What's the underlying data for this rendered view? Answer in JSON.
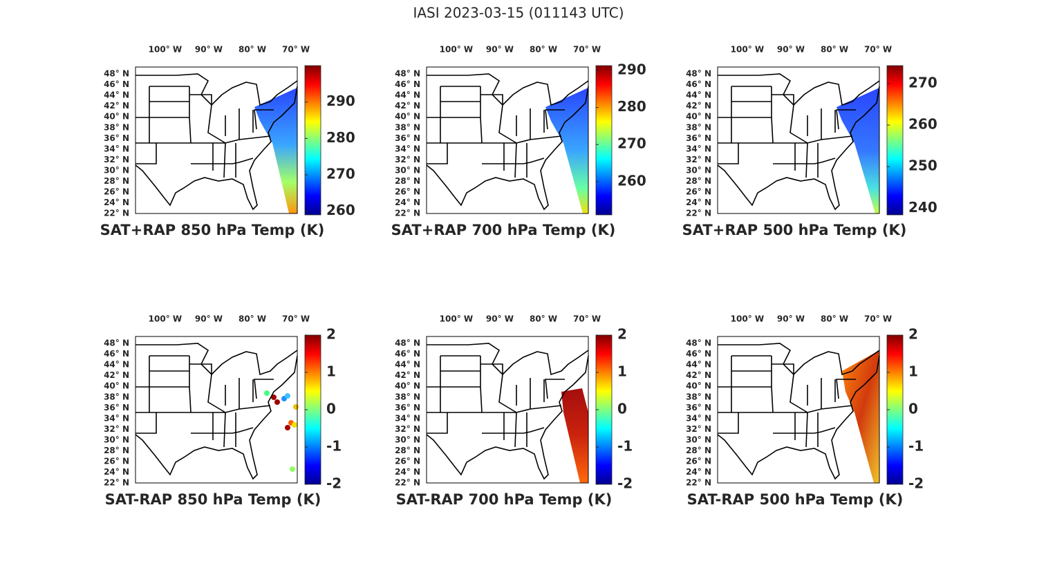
{
  "title": "IASI 2023-03-15 (011143 UTC)",
  "map": {
    "lon_lim": [
      -106.8,
      -69.7
    ],
    "lat_lim": [
      22,
      49.3
    ],
    "lon_ticks": [
      {
        "value": -100,
        "label": "100° W"
      },
      {
        "value": -90,
        "label": "90° W"
      },
      {
        "value": -80,
        "label": "80° W"
      },
      {
        "value": -70,
        "label": "70° W"
      }
    ],
    "lat_ticks": [
      {
        "value": 48,
        "label": "48° N"
      },
      {
        "value": 46,
        "label": "46° N"
      },
      {
        "value": 44,
        "label": "44° N"
      },
      {
        "value": 42,
        "label": "42° N"
      },
      {
        "value": 40,
        "label": "40° N"
      },
      {
        "value": 38,
        "label": "38° N"
      },
      {
        "value": 36,
        "label": "36° N"
      },
      {
        "value": 34,
        "label": "34° N"
      },
      {
        "value": 32,
        "label": "32° N"
      },
      {
        "value": 30,
        "label": "30° N"
      },
      {
        "value": 28,
        "label": "28° N"
      },
      {
        "value": 26,
        "label": "26° N"
      },
      {
        "value": 24,
        "label": "24° N"
      },
      {
        "value": 22,
        "label": "22° N"
      }
    ]
  },
  "panels": [
    {
      "title": "SAT+RAP 850 hPa Temp (K)",
      "cbar_lim": [
        259,
        300
      ],
      "cbar_ticks": [
        260,
        270,
        280,
        290
      ]
    },
    {
      "title": "SAT+RAP 700 hPa Temp (K)",
      "cbar_lim": [
        251,
        291.3
      ],
      "cbar_ticks": [
        260,
        270,
        280,
        290
      ]
    },
    {
      "title": "SAT+RAP 500 hPa Temp (K)",
      "cbar_lim": [
        238.4,
        274.3
      ],
      "cbar_ticks": [
        240,
        250,
        260,
        270
      ]
    },
    {
      "title": "SAT-RAP 850 hPa Temp (K)",
      "cbar_lim": [
        -2,
        2
      ],
      "cbar_ticks": [
        -2,
        -1,
        0,
        1,
        2
      ]
    },
    {
      "title": "SAT-RAP 700 hPa Temp (K)",
      "cbar_lim": [
        -2,
        2
      ],
      "cbar_ticks": [
        -2,
        -1,
        0,
        1,
        2
      ]
    },
    {
      "title": "SAT-RAP 500 hPa Temp (K)",
      "cbar_lim": [
        -2,
        2
      ],
      "cbar_ticks": [
        -2,
        -1,
        0,
        1,
        2
      ]
    }
  ]
}
